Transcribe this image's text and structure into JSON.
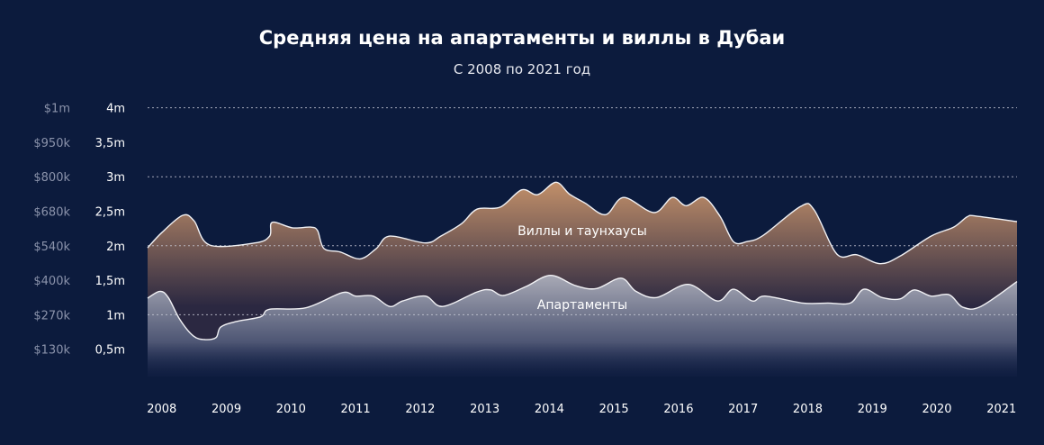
{
  "chart_data": {
    "type": "area",
    "title": "Средняя цена на апартаменты и виллы в Дубаи",
    "subtitle": "С 2008 по 2021 год",
    "xlabel": "",
    "ylabel": "",
    "xlim": [
      2007.78,
      2021.24
    ],
    "ylim": [
      0,
      4
    ],
    "grid": "dotted horizontal at 2m, 3m, 4m and 1m",
    "x_ticks": [
      "2008",
      "2009",
      "2010",
      "2011",
      "2012",
      "2013",
      "2014",
      "2015",
      "2016",
      "2017",
      "2018",
      "2019",
      "2020",
      "2021"
    ],
    "y_ticks_aed": [
      {
        "v": 4,
        "label": "4m"
      },
      {
        "v": 3.5,
        "label": "3,5m"
      },
      {
        "v": 3,
        "label": "3m"
      },
      {
        "v": 2.5,
        "label": "2,5m"
      },
      {
        "v": 2,
        "label": "2m"
      },
      {
        "v": 1.5,
        "label": "1,5m"
      },
      {
        "v": 1,
        "label": "1m"
      },
      {
        "v": 0.5,
        "label": "0,5m"
      }
    ],
    "y_ticks_usd": [
      "$1m",
      "$950k",
      "$800k",
      "$680k",
      "$540k",
      "$400k",
      "$270k",
      "$130k"
    ],
    "grid_lines": [
      4,
      3,
      2,
      1
    ],
    "series": [
      {
        "name": "Виллы и таунхаусы",
        "color_top": "#c4916a",
        "x": [
          2007.78,
          2008.0,
          2008.32,
          2008.5,
          2008.74,
          2009.44,
          2009.67,
          2009.71,
          2010.02,
          2010.3,
          2010.41,
          2010.51,
          2010.76,
          2011.07,
          2011.32,
          2011.53,
          2012.08,
          2012.32,
          2012.64,
          2012.88,
          2013.24,
          2013.57,
          2013.82,
          2014.1,
          2014.31,
          2014.55,
          2014.87,
          2015.15,
          2015.62,
          2015.9,
          2016.12,
          2016.39,
          2016.64,
          2016.85,
          2017.06,
          2017.31,
          2017.89,
          2018.1,
          2018.45,
          2018.76,
          2019.12,
          2019.43,
          2019.91,
          2020.26,
          2020.47,
          2020.61,
          2021.24
        ],
        "values": [
          1.97,
          2.19,
          2.44,
          2.36,
          2.01,
          2.04,
          2.14,
          2.34,
          2.26,
          2.27,
          2.22,
          1.96,
          1.91,
          1.81,
          1.96,
          2.14,
          2.04,
          2.14,
          2.32,
          2.53,
          2.56,
          2.81,
          2.74,
          2.92,
          2.75,
          2.62,
          2.45,
          2.7,
          2.48,
          2.7,
          2.58,
          2.7,
          2.43,
          2.06,
          2.06,
          2.15,
          2.57,
          2.52,
          1.88,
          1.87,
          1.74,
          1.85,
          2.14,
          2.27,
          2.42,
          2.43,
          2.35
        ]
      },
      {
        "name": "Апартаменты",
        "color_top": "#a9aab6",
        "x": [
          2007.78,
          2007.97,
          2008.1,
          2008.28,
          2008.49,
          2008.67,
          2008.84,
          2008.91,
          2009.14,
          2009.53,
          2009.67,
          2010.23,
          2010.79,
          2011.0,
          2011.27,
          2011.53,
          2011.73,
          2012.08,
          2012.35,
          2012.88,
          2013.09,
          2013.29,
          2013.64,
          2014.02,
          2014.41,
          2014.73,
          2015.11,
          2015.34,
          2015.66,
          2016.15,
          2016.6,
          2016.85,
          2017.14,
          2017.34,
          2017.92,
          2018.31,
          2018.66,
          2018.87,
          2019.15,
          2019.43,
          2019.65,
          2019.91,
          2020.19,
          2020.4,
          2020.68,
          2021.24
        ],
        "values": [
          1.24,
          1.34,
          1.25,
          0.93,
          0.69,
          0.64,
          0.67,
          0.82,
          0.9,
          0.97,
          1.08,
          1.1,
          1.32,
          1.27,
          1.27,
          1.12,
          1.2,
          1.27,
          1.12,
          1.33,
          1.36,
          1.28,
          1.41,
          1.57,
          1.42,
          1.38,
          1.53,
          1.34,
          1.25,
          1.44,
          1.2,
          1.37,
          1.2,
          1.27,
          1.17,
          1.17,
          1.17,
          1.37,
          1.25,
          1.23,
          1.36,
          1.27,
          1.29,
          1.11,
          1.12,
          1.48
        ]
      }
    ]
  }
}
